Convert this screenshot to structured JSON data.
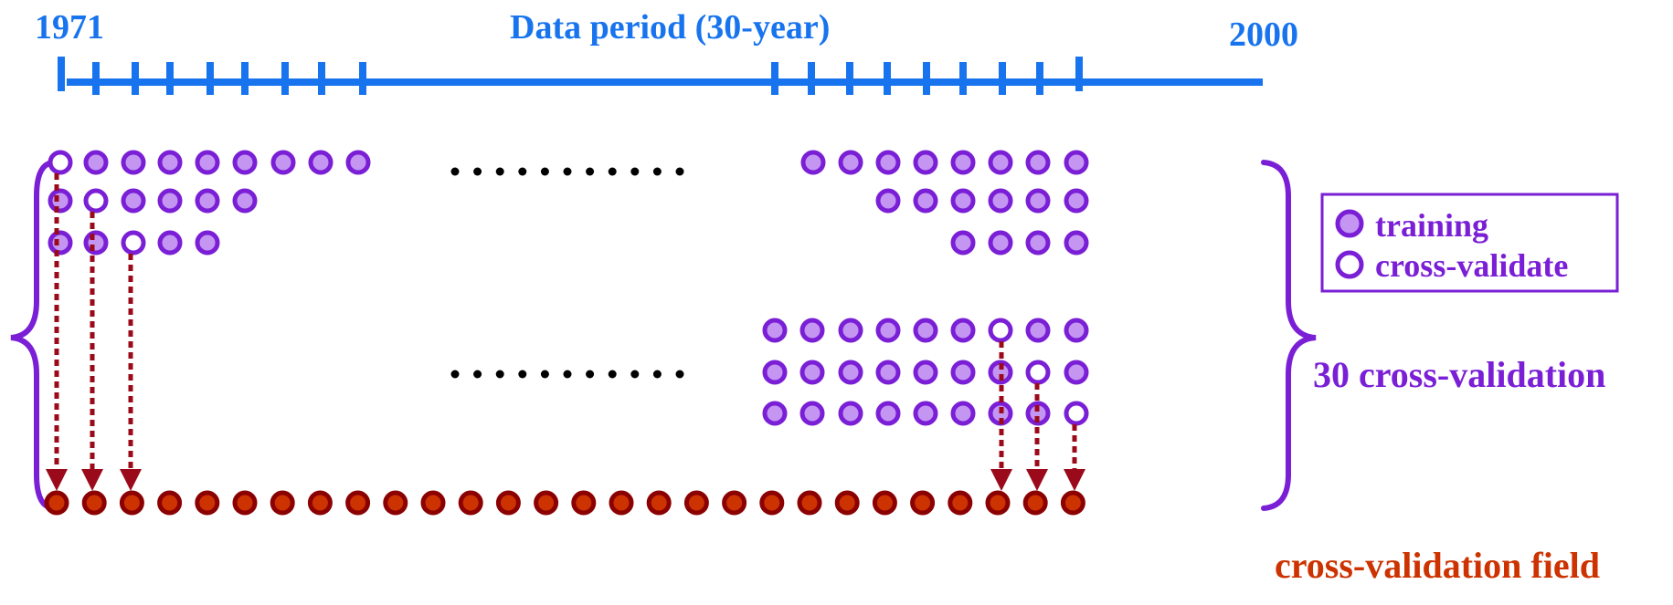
{
  "timeline": {
    "start_label": "1971",
    "end_label": "2000",
    "title": "Data period (30-year)",
    "color": "#1874ee"
  },
  "legend": {
    "training_label": "training",
    "cross_validate_label": "cross-validate"
  },
  "brace_label": "30 cross-validation",
  "field_label": "cross-validation field",
  "colors": {
    "training_fill": "#c496f2",
    "training_stroke": "#7a1fd6",
    "cv_stroke": "#7a1fd6",
    "field_fill": "#cc3300",
    "field_stroke": "#8b0000",
    "arrow": "#9b0a1a",
    "brace": "#7a1fd6",
    "field_text": "#cc3300",
    "dots": "#000000"
  }
}
